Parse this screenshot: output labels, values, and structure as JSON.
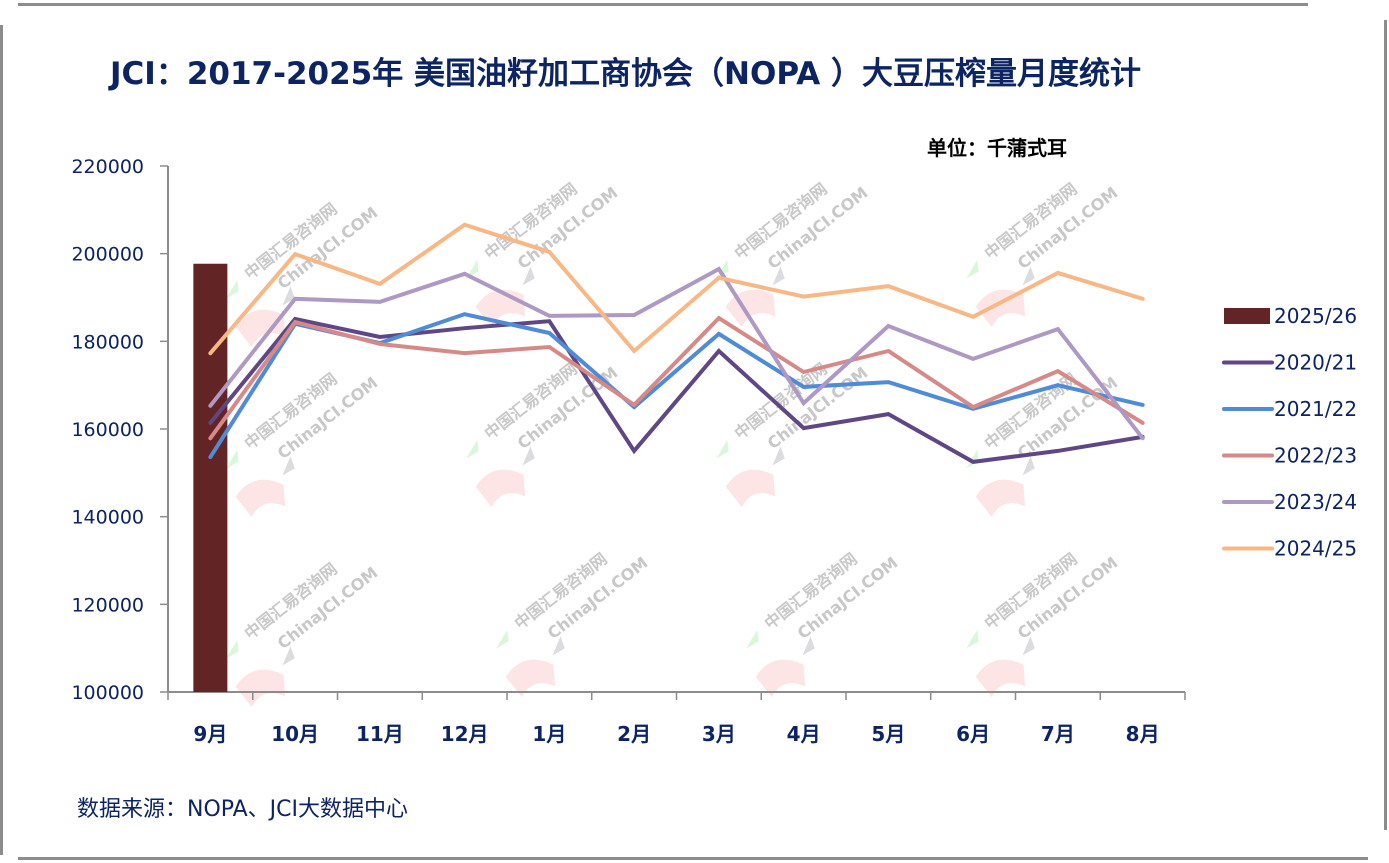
{
  "title": "JCI：2017-2025年 美国油籽加工商协会（NOPA ）大豆压榨量月度统计",
  "unit_label": "单位：千蒲式耳",
  "source_label": "数据来源：NOPA、JCI大数据中心",
  "watermark": {
    "line1": "中国汇易咨询网",
    "line2": "ChinaJCI.COM"
  },
  "chart_data": {
    "type": "line",
    "title": "JCI：2017-2025年 美国油籽加工商协会（NOPA ）大豆压榨量月度统计",
    "xlabel": "",
    "ylabel": "千蒲式耳",
    "ylim": [
      100000,
      220000
    ],
    "yticks": [
      100000,
      120000,
      140000,
      160000,
      180000,
      200000,
      220000
    ],
    "ytick_labels": [
      "100000",
      "120000",
      "140000",
      "160000",
      "180000",
      "200000",
      "220000"
    ],
    "categories": [
      "9月",
      "10月",
      "11月",
      "12月",
      "1月",
      "2月",
      "3月",
      "4月",
      "5月",
      "6月",
      "7月",
      "8月"
    ],
    "grid": false,
    "legend_position": "right",
    "bar_series": [
      {
        "name": "2025/26",
        "color": "#622424",
        "values": [
          197700,
          null,
          null,
          null,
          null,
          null,
          null,
          null,
          null,
          null,
          null,
          null
        ]
      }
    ],
    "series": [
      {
        "name": "2020/21",
        "color": "#5e4784",
        "values": [
          161400,
          185100,
          181000,
          183000,
          184600,
          155000,
          177800,
          160200,
          163400,
          152500,
          155000,
          158200
        ]
      },
      {
        "name": "2021/22",
        "color": "#4f8bd6",
        "values": [
          153600,
          184000,
          179600,
          186200,
          181900,
          165000,
          181700,
          169600,
          170700,
          164600,
          170000,
          165500
        ]
      },
      {
        "name": "2022/23",
        "color": "#d68a87",
        "values": [
          157900,
          184400,
          179400,
          177300,
          178700,
          165500,
          185300,
          173000,
          177800,
          165000,
          173200,
          161400
        ]
      },
      {
        "name": "2023/24",
        "color": "#ae99c4",
        "values": [
          165300,
          189700,
          189000,
          195400,
          185800,
          186000,
          196500,
          165900,
          183500,
          176000,
          182800,
          157900
        ]
      },
      {
        "name": "2024/25",
        "color": "#f7b886",
        "values": [
          177300,
          199900,
          193100,
          206600,
          200400,
          177800,
          194500,
          190200,
          192600,
          185600,
          195600,
          189700
        ]
      }
    ],
    "legend": [
      "2025/26",
      "2020/21",
      "2021/22",
      "2022/23",
      "2023/24",
      "2024/25"
    ]
  }
}
